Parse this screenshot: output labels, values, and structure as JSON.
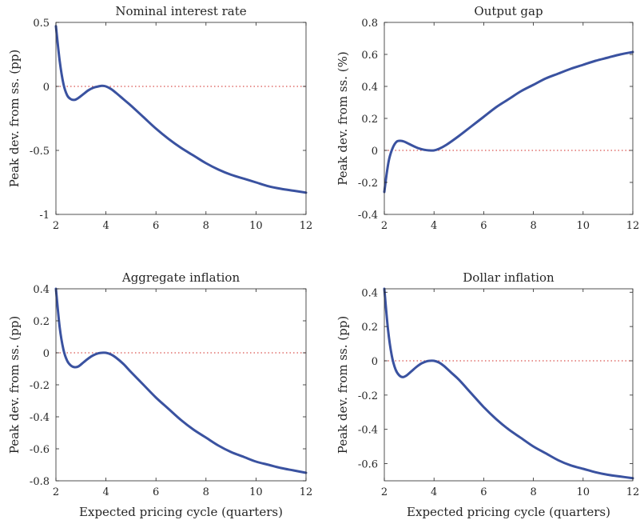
{
  "figure": {
    "background": "#ffffff",
    "line_color": "#3a52a0",
    "zero_line_color": "#d9534f",
    "axis_color": "#262626"
  },
  "chart_data": [
    {
      "type": "line",
      "title": "Nominal interest rate",
      "xlabel": "",
      "ylabel": "Peak dev. from ss. (pp)",
      "xlim": [
        2,
        12
      ],
      "ylim": [
        -1,
        0.5
      ],
      "xticks": [
        2,
        4,
        6,
        8,
        10,
        12
      ],
      "xtick_labels": [
        "2",
        "4",
        "6",
        "8",
        "10",
        "12"
      ],
      "yticks": [
        -1,
        -0.5,
        0,
        0.5
      ],
      "ytick_labels": [
        "-1",
        "-0.5",
        "0",
        "0.5"
      ],
      "reference_line_y": 0,
      "series": [
        {
          "x": [
            2,
            2.15,
            2.3,
            2.45,
            2.6,
            2.75,
            2.9,
            3.1,
            3.3,
            3.5,
            3.7,
            3.85,
            4,
            4.2,
            4.4,
            4.7,
            5,
            5.5,
            6,
            6.5,
            7,
            7.5,
            8,
            8.5,
            9,
            9.5,
            10,
            10.5,
            11,
            11.5,
            12
          ],
          "y": [
            0.47,
            0.2,
            0.02,
            -0.07,
            -0.1,
            -0.105,
            -0.09,
            -0.06,
            -0.03,
            -0.01,
            0.0,
            0.005,
            0.0,
            -0.02,
            -0.05,
            -0.1,
            -0.15,
            -0.24,
            -0.33,
            -0.41,
            -0.48,
            -0.54,
            -0.6,
            -0.65,
            -0.69,
            -0.72,
            -0.75,
            -0.78,
            -0.8,
            -0.815,
            -0.83
          ]
        }
      ]
    },
    {
      "type": "line",
      "title": "Output gap",
      "xlabel": "",
      "ylabel": "Peak dev. from ss. (%)",
      "xlim": [
        2,
        12
      ],
      "ylim": [
        -0.4,
        0.8
      ],
      "xticks": [
        2,
        4,
        6,
        8,
        10,
        12
      ],
      "xtick_labels": [
        "2",
        "4",
        "6",
        "8",
        "10",
        "12"
      ],
      "yticks": [
        -0.4,
        -0.2,
        0,
        0.2,
        0.4,
        0.6,
        0.8
      ],
      "ytick_labels": [
        "-0.4",
        "-0.2",
        "0",
        "0.2",
        "0.4",
        "0.6",
        "0.8"
      ],
      "reference_line_y": 0,
      "series": [
        {
          "x": [
            2,
            2.1,
            2.2,
            2.35,
            2.5,
            2.65,
            2.8,
            3,
            3.2,
            3.4,
            3.6,
            3.8,
            4,
            4.2,
            4.5,
            5,
            5.5,
            6,
            6.5,
            7,
            7.5,
            8,
            8.5,
            9,
            9.5,
            10,
            10.5,
            11,
            11.5,
            12
          ],
          "y": [
            -0.26,
            -0.14,
            -0.05,
            0.02,
            0.055,
            0.06,
            0.055,
            0.04,
            0.025,
            0.012,
            0.004,
            0.0,
            0.0,
            0.01,
            0.035,
            0.09,
            0.15,
            0.21,
            0.27,
            0.32,
            0.37,
            0.41,
            0.45,
            0.48,
            0.51,
            0.535,
            0.56,
            0.58,
            0.6,
            0.615
          ]
        }
      ]
    },
    {
      "type": "line",
      "title": "Aggregate inflation",
      "xlabel": "Expected pricing cycle (quarters)",
      "ylabel": "Peak dev. from ss. (pp)",
      "xlim": [
        2,
        12
      ],
      "ylim": [
        -0.8,
        0.4
      ],
      "xticks": [
        2,
        4,
        6,
        8,
        10,
        12
      ],
      "xtick_labels": [
        "2",
        "4",
        "6",
        "8",
        "10",
        "12"
      ],
      "yticks": [
        -0.8,
        -0.6,
        -0.4,
        -0.2,
        0,
        0.2,
        0.4
      ],
      "ytick_labels": [
        "-0.8",
        "-0.6",
        "-0.4",
        "-0.2",
        "0",
        "0.2",
        "0.4"
      ],
      "reference_line_y": 0,
      "series": [
        {
          "x": [
            2,
            2.15,
            2.3,
            2.45,
            2.6,
            2.75,
            2.9,
            3.1,
            3.3,
            3.5,
            3.7,
            3.85,
            4,
            4.2,
            4.4,
            4.7,
            5,
            5.5,
            6,
            6.5,
            7,
            7.5,
            8,
            8.5,
            9,
            9.5,
            10,
            10.5,
            11,
            11.5,
            12
          ],
          "y": [
            0.4,
            0.16,
            0.02,
            -0.05,
            -0.08,
            -0.09,
            -0.085,
            -0.06,
            -0.035,
            -0.015,
            -0.003,
            0.0,
            0.0,
            -0.01,
            -0.03,
            -0.07,
            -0.12,
            -0.2,
            -0.28,
            -0.35,
            -0.42,
            -0.48,
            -0.53,
            -0.58,
            -0.62,
            -0.65,
            -0.68,
            -0.7,
            -0.72,
            -0.735,
            -0.75
          ]
        }
      ]
    },
    {
      "type": "line",
      "title": "Dollar inflation",
      "xlabel": "Expected pricing cycle (quarters)",
      "ylabel": "Peak dev. from ss. (pp)",
      "xlim": [
        2,
        12
      ],
      "ylim": [
        -0.7,
        0.42
      ],
      "xticks": [
        2,
        4,
        6,
        8,
        10,
        12
      ],
      "xtick_labels": [
        "2",
        "4",
        "6",
        "8",
        "10",
        "12"
      ],
      "yticks": [
        -0.6,
        -0.4,
        -0.2,
        0,
        0.2,
        0.4
      ],
      "ytick_labels": [
        "-0.6",
        "-0.4",
        "-0.2",
        "0",
        "0.2",
        "0.4"
      ],
      "reference_line_y": 0,
      "series": [
        {
          "x": [
            2,
            2.15,
            2.3,
            2.45,
            2.6,
            2.75,
            2.9,
            3.1,
            3.3,
            3.5,
            3.7,
            3.85,
            4,
            4.2,
            4.4,
            4.7,
            5,
            5.5,
            6,
            6.5,
            7,
            7.5,
            8,
            8.5,
            9,
            9.5,
            10,
            10.5,
            11,
            11.5,
            12
          ],
          "y": [
            0.42,
            0.18,
            0.03,
            -0.05,
            -0.085,
            -0.095,
            -0.085,
            -0.06,
            -0.035,
            -0.015,
            -0.003,
            0.0,
            0.0,
            -0.01,
            -0.03,
            -0.07,
            -0.11,
            -0.19,
            -0.27,
            -0.34,
            -0.4,
            -0.45,
            -0.5,
            -0.54,
            -0.58,
            -0.61,
            -0.63,
            -0.65,
            -0.665,
            -0.675,
            -0.685
          ]
        }
      ]
    }
  ]
}
